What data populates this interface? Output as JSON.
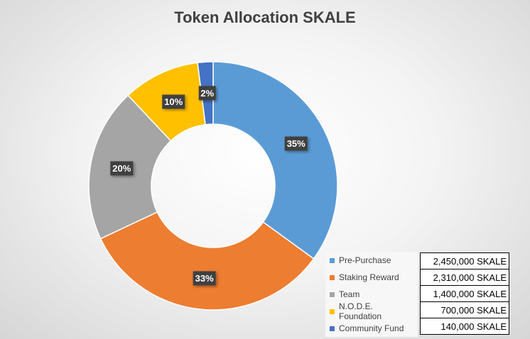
{
  "chart_data": {
    "type": "pie",
    "variant": "doughnut",
    "title": "Token Allocation SKALE",
    "start_angle_deg": 0,
    "direction": "clockwise",
    "legend": "bottom-right",
    "slices": [
      {
        "name": "Pre-Purchase",
        "value": 35,
        "label": "35%",
        "color": "#5B9BD5",
        "amount": "2,450,000 SKALE"
      },
      {
        "name": "Staking Reward",
        "value": 33,
        "label": "33%",
        "color": "#ED7D31",
        "amount": "2,310,000 SKALE"
      },
      {
        "name": "Team",
        "value": 20,
        "label": "20%",
        "color": "#A5A5A5",
        "amount": "1,400,000 SKALE"
      },
      {
        "name": "N.O.D.E. Foundation",
        "value": 10,
        "label": "10%",
        "color": "#FFC000",
        "amount": "700,000 SKALE"
      },
      {
        "name": "Community Fund",
        "value": 2,
        "label": "2%",
        "color": "#4472C4",
        "amount": "140,000 SKALE"
      }
    ]
  }
}
